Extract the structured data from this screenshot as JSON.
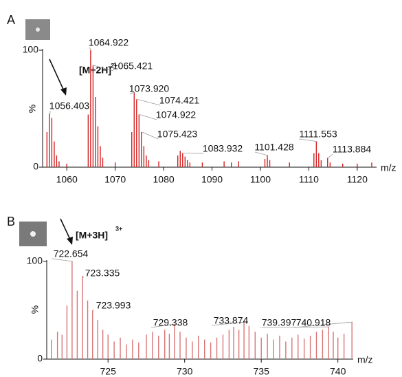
{
  "chart_data": [
    {
      "type": "stick",
      "panel_label": "A",
      "annotation": {
        "text": "[M+2H]",
        "superscript": "2+"
      },
      "xlabel": "m/z",
      "ylabel": "%",
      "color": "#d42020",
      "xlim": [
        1055,
        1124
      ],
      "xticks": [
        1060,
        1070,
        1080,
        1090,
        1100,
        1110,
        1120
      ],
      "ylim": [
        0,
        100
      ],
      "yticks": [
        0,
        100
      ],
      "x": [
        1055.9,
        1056.403,
        1056.9,
        1057.4,
        1057.9,
        1058.4,
        1060,
        1064.42,
        1064.922,
        1065.421,
        1065.92,
        1066.42,
        1066.92,
        1067.42,
        1070,
        1073.42,
        1073.92,
        1074.421,
        1074.922,
        1075.423,
        1075.92,
        1076.42,
        1076.92,
        1079,
        1082.93,
        1083.43,
        1083.932,
        1084.43,
        1084.93,
        1085.43,
        1088,
        1092.5,
        1094,
        1095.5,
        1100.93,
        1101.428,
        1101.93,
        1106,
        1111.053,
        1111.553,
        1112.05,
        1112.55,
        1113.884,
        1114.4,
        1117,
        1120,
        1123
      ],
      "values": [
        30,
        46,
        42,
        22,
        10,
        5,
        3,
        45,
        100,
        87,
        60,
        35,
        18,
        8,
        4,
        30,
        64,
        58,
        45,
        30,
        18,
        10,
        6,
        5,
        10,
        14,
        12,
        9,
        6,
        4,
        4,
        5,
        4,
        5,
        7,
        10,
        6,
        4,
        12,
        22,
        12,
        6,
        8,
        4,
        3,
        3,
        4
      ],
      "peak_labels": [
        {
          "x": 1056.403,
          "label": "1056.403"
        },
        {
          "x": 1064.922,
          "label": "1064.922"
        },
        {
          "x": 1065.421,
          "label": "1065.421"
        },
        {
          "x": 1073.92,
          "label": "1073.920"
        },
        {
          "x": 1074.421,
          "label": "1074.421"
        },
        {
          "x": 1074.922,
          "label": "1074.922"
        },
        {
          "x": 1075.423,
          "label": "1075.423"
        },
        {
          "x": 1083.932,
          "label": "1083.932"
        },
        {
          "x": 1101.428,
          "label": "1101.428"
        },
        {
          "x": 1111.553,
          "label": "1111.553"
        },
        {
          "x": 1113.884,
          "label": "1113.884"
        }
      ]
    },
    {
      "type": "stick",
      "panel_label": "B",
      "annotation": {
        "text": "[M+3H]",
        "superscript": "3+"
      },
      "xlabel": "m/z",
      "ylabel": "%",
      "color": "#d87474",
      "xlim": [
        721,
        741
      ],
      "xticks": [
        725,
        730,
        735,
        740
      ],
      "ylim": [
        0,
        100
      ],
      "yticks": [
        0,
        100
      ],
      "x": [
        721.3,
        721.7,
        722.0,
        722.32,
        722.654,
        722.99,
        723.335,
        723.67,
        723.993,
        724.33,
        724.66,
        725.0,
        725.4,
        725.8,
        726.2,
        726.6,
        727.0,
        727.5,
        727.9,
        728.3,
        728.7,
        729.0,
        729.338,
        729.7,
        730.1,
        730.5,
        730.9,
        731.3,
        731.7,
        732.1,
        732.5,
        732.9,
        733.2,
        733.54,
        733.874,
        734.2,
        734.6,
        735.0,
        735.4,
        735.8,
        736.2,
        736.6,
        737.0,
        737.4,
        737.8,
        738.2,
        738.6,
        739.0,
        739.397,
        739.7,
        740.0,
        740.4,
        740.918
      ],
      "values": [
        20,
        28,
        25,
        55,
        100,
        70,
        85,
        60,
        50,
        40,
        30,
        25,
        18,
        22,
        15,
        20,
        17,
        25,
        28,
        24,
        30,
        26,
        36,
        28,
        22,
        18,
        24,
        20,
        17,
        22,
        25,
        30,
        33,
        30,
        38,
        34,
        28,
        22,
        26,
        20,
        24,
        18,
        22,
        25,
        21,
        24,
        28,
        30,
        33,
        28,
        22,
        26,
        38
      ],
      "peak_labels": [
        {
          "x": 722.654,
          "label": "722.654"
        },
        {
          "x": 723.335,
          "label": "723.335"
        },
        {
          "x": 723.993,
          "label": "723.993"
        },
        {
          "x": 729.338,
          "label": "729.338"
        },
        {
          "x": 733.874,
          "label": "733.874"
        },
        {
          "x": 739.397,
          "label": "739.397"
        },
        {
          "x": 740.918,
          "label": "740.918"
        }
      ]
    }
  ]
}
